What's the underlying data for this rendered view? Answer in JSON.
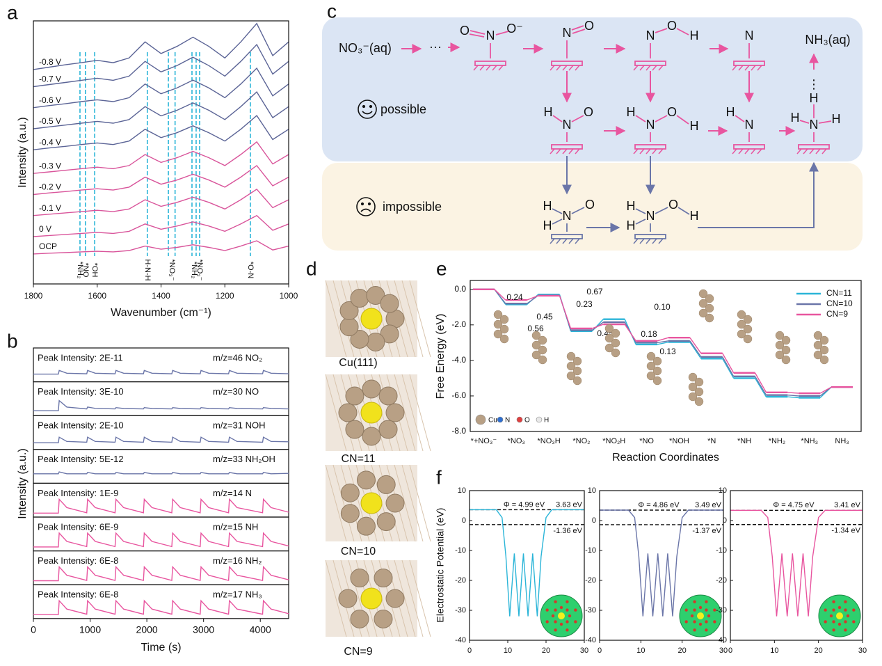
{
  "chart_data": [
    {
      "type": "line",
      "panel": "a",
      "xlabel": "Wavenumber (cm⁻¹)",
      "ylabel": "Intensity (a.u.)",
      "x": [
        1800,
        1750,
        1700,
        1650,
        1600,
        1550,
        1500,
        1450,
        1400,
        1350,
        1300,
        1250,
        1200,
        1150,
        1100,
        1050,
        1000
      ],
      "xlim": [
        1800,
        1000
      ],
      "xticks": [
        1800,
        1600,
        1400,
        1200,
        1000
      ],
      "ylim": [
        0,
        100
      ],
      "series": [
        {
          "name": "-0.8 V",
          "color": "#5b6496",
          "values": [
            81.5,
            82.4,
            83.3,
            84.1,
            85,
            84.1,
            85.9,
            92,
            87.6,
            90.3,
            93.8,
            90.3,
            85.9,
            92,
            99,
            86.8,
            92
          ]
        },
        {
          "name": "-0.7 V",
          "color": "#5b6496",
          "values": [
            75,
            75.8,
            76.6,
            77.4,
            78.2,
            77.4,
            79,
            84.6,
            80.6,
            83,
            86.2,
            83,
            79,
            84.6,
            91,
            79.8,
            84.6
          ]
        },
        {
          "name": "-0.6 V",
          "color": "#5b6496",
          "values": [
            67,
            67.8,
            68.5,
            69.3,
            70,
            69.3,
            70.8,
            76,
            72.3,
            74.5,
            77.5,
            74.5,
            70.8,
            76,
            82,
            71.5,
            76
          ]
        },
        {
          "name": "-0.5 V",
          "color": "#5b6496",
          "values": [
            59,
            59.7,
            60.4,
            61.1,
            61.8,
            61.1,
            62.5,
            67.4,
            63.9,
            66,
            68.8,
            66,
            62.5,
            67.4,
            73,
            63.2,
            67.4
          ]
        },
        {
          "name": "-0.4 V",
          "color": "#5b6496",
          "values": [
            51,
            51.7,
            52.3,
            53,
            53.6,
            53,
            54.3,
            58.8,
            55.6,
            57.5,
            60.1,
            57.5,
            54.3,
            58.8,
            64,
            54.9,
            58.8
          ]
        },
        {
          "name": "-0.3 V",
          "color": "#d9559b",
          "values": [
            42,
            42.6,
            43.2,
            43.8,
            44.4,
            43.8,
            45,
            49.2,
            46.2,
            48,
            50.4,
            48,
            45,
            49.2,
            54,
            45.6,
            49.2
          ]
        },
        {
          "name": "-0.2 V",
          "color": "#d9559b",
          "values": [
            34,
            34.6,
            35.1,
            35.7,
            36.2,
            35.7,
            36.8,
            40.6,
            37.9,
            39.5,
            41.7,
            39.5,
            36.8,
            40.6,
            45,
            37.3,
            40.6
          ]
        },
        {
          "name": "-0.1 V",
          "color": "#d9559b",
          "values": [
            26,
            26.5,
            27,
            27.5,
            28,
            27.5,
            28.5,
            32,
            29.5,
            31,
            33,
            31,
            28.5,
            32,
            36,
            29,
            32
          ]
        },
        {
          "name": "0 V",
          "color": "#d9559b",
          "values": [
            18,
            18.4,
            18.8,
            19.2,
            19.6,
            19.2,
            20,
            22.8,
            20.8,
            22,
            23.6,
            22,
            20,
            22.8,
            26,
            20.4,
            22.8
          ]
        },
        {
          "name": "OCP",
          "color": "#d9559b",
          "values": [
            11.4,
            11.7,
            11.9,
            12.2,
            12.4,
            12.2,
            12.7,
            14.4,
            13.2,
            13.9,
            14.9,
            13.9,
            12.7,
            14.4,
            16.4,
            12.9,
            14.4
          ]
        }
      ],
      "marker_color": "#2bb5d8",
      "markers": [
        {
          "values": [
            1654
          ],
          "label": "*NH₂"
        },
        {
          "values": [
            1637
          ],
          "label": "*NO"
        },
        {
          "values": [
            1608
          ],
          "label": "*OH"
        },
        {
          "values": [
            1443
          ],
          "label": "H-N-H"
        },
        {
          "values": [
            1377,
            1356
          ],
          "label": "*NO₃⁻"
        },
        {
          "values": [
            1303,
            1290
          ],
          "label": "*NH₂"
        },
        {
          "values": [
            1279
          ],
          "label": "*NO₂⁻"
        },
        {
          "values": [
            1120
          ],
          "label": "*O-N"
        }
      ]
    },
    {
      "type": "line",
      "panel": "b",
      "xlabel": "Time (s)",
      "ylabel": "Intensity (a.u.)",
      "x": [
        0,
        440,
        455,
        590,
        940,
        955,
        1090,
        1440,
        1455,
        1590,
        1940,
        1955,
        2090,
        2440,
        2455,
        2590,
        2940,
        2955,
        3090,
        3440,
        3455,
        3590,
        4040,
        4055,
        4190,
        4500
      ],
      "xlim": [
        0,
        4500
      ],
      "xticks": [
        0,
        1000,
        2000,
        3000,
        4000
      ],
      "ylim": [
        0,
        1
      ],
      "series": [
        {
          "name": "m/z=46 NO₂",
          "label": "Peak Intensity: 2E-11",
          "color": "#6a75a8",
          "values": [
            0.3,
            0.3,
            0.5,
            0.35,
            0.32,
            0.5,
            0.35,
            0.32,
            0.5,
            0.35,
            0.32,
            0.5,
            0.35,
            0.32,
            0.5,
            0.35,
            0.32,
            0.5,
            0.35,
            0.32,
            0.5,
            0.35,
            0.32,
            0.5,
            0.35,
            0.32
          ]
        },
        {
          "name": "m/z=30 NO",
          "label": "Peak Intensity: 3E-10",
          "color": "#6a75a8",
          "values": [
            0.15,
            0.15,
            0.7,
            0.35,
            0.25,
            0.35,
            0.28,
            0.25,
            0.32,
            0.27,
            0.25,
            0.32,
            0.27,
            0.25,
            0.32,
            0.27,
            0.25,
            0.32,
            0.27,
            0.25,
            0.32,
            0.27,
            0.25,
            0.32,
            0.27,
            0.25
          ]
        },
        {
          "name": "m/z=31 NOH",
          "label": "Peak Intensity: 2E-10",
          "color": "#6a75a8",
          "values": [
            0.25,
            0.25,
            0.55,
            0.32,
            0.28,
            0.55,
            0.32,
            0.28,
            0.55,
            0.32,
            0.28,
            0.55,
            0.32,
            0.28,
            0.55,
            0.32,
            0.28,
            0.55,
            0.32,
            0.28,
            0.55,
            0.32,
            0.28,
            0.55,
            0.32,
            0.3
          ]
        },
        {
          "name": "m/z=33 NH₂OH",
          "label": "Peak Intensity: 5E-12",
          "color": "#6a75a8",
          "values": [
            0.4,
            0.4,
            0.5,
            0.4,
            0.4,
            0.47,
            0.4,
            0.4,
            0.47,
            0.4,
            0.4,
            0.47,
            0.4,
            0.4,
            0.47,
            0.4,
            0.4,
            0.47,
            0.4,
            0.4,
            0.47,
            0.4,
            0.4,
            0.47,
            0.4,
            0.42
          ]
        },
        {
          "name": "m/z=14 N",
          "label": "Peak Intensity: 1E-9",
          "color": "#e8559f",
          "values": [
            0.1,
            0.1,
            0.85,
            0.4,
            0.12,
            0.85,
            0.4,
            0.12,
            0.85,
            0.4,
            0.12,
            0.85,
            0.4,
            0.12,
            0.85,
            0.4,
            0.12,
            0.85,
            0.4,
            0.12,
            0.85,
            0.4,
            0.12,
            0.85,
            0.4,
            0.15
          ]
        },
        {
          "name": "m/z=15 NH",
          "label": "Peak Intensity: 6E-9",
          "color": "#e8559f",
          "values": [
            0.1,
            0.1,
            0.85,
            0.4,
            0.12,
            0.85,
            0.4,
            0.12,
            0.85,
            0.4,
            0.12,
            0.85,
            0.4,
            0.12,
            0.85,
            0.4,
            0.12,
            0.85,
            0.4,
            0.12,
            0.85,
            0.4,
            0.12,
            0.85,
            0.4,
            0.15
          ]
        },
        {
          "name": "m/z=16 NH₂",
          "label": "Peak Intensity: 6E-8",
          "color": "#e8559f",
          "values": [
            0.1,
            0.1,
            0.85,
            0.4,
            0.12,
            0.85,
            0.4,
            0.12,
            0.85,
            0.4,
            0.12,
            0.85,
            0.4,
            0.12,
            0.85,
            0.4,
            0.12,
            0.85,
            0.4,
            0.12,
            0.85,
            0.4,
            0.12,
            0.85,
            0.4,
            0.15
          ]
        },
        {
          "name": "m/z=17 NH₃",
          "label": "Peak Intensity: 6E-8",
          "color": "#e8559f",
          "values": [
            0.1,
            0.1,
            0.85,
            0.4,
            0.12,
            0.85,
            0.4,
            0.12,
            0.85,
            0.4,
            0.12,
            0.85,
            0.4,
            0.12,
            0.85,
            0.4,
            0.12,
            0.85,
            0.4,
            0.12,
            0.85,
            0.4,
            0.12,
            0.85,
            0.4,
            0.15
          ]
        }
      ]
    },
    {
      "type": "step",
      "panel": "e",
      "xlabel": "Reaction Coordinates",
      "ylabel": "Free Energy (eV)",
      "categories": [
        "*+NO₃⁻",
        "*NO₃",
        "*NO₃H",
        "*NO₂",
        "*NO₂H",
        "*NO",
        "*NOH",
        "*N",
        "*NH",
        "*NH₂",
        "*NH₃",
        "NH₃"
      ],
      "ylim": [
        -8,
        0.5
      ],
      "yticks": [
        {
          "value": 0,
          "label": "0.0"
        },
        {
          "value": -2,
          "label": "-2.0"
        },
        {
          "value": -4,
          "label": "-4.0"
        },
        {
          "value": -6,
          "label": "-6.0"
        },
        {
          "value": -8,
          "label": "-8.0"
        }
      ],
      "legend": "top-right",
      "series": [
        {
          "name": "CN=11",
          "color": "#2bb5d8",
          "values": [
            0,
            -0.85,
            -0.29,
            -2.35,
            -1.68,
            -3.1,
            -2.97,
            -3.9,
            -5.0,
            -6.05,
            -6.1,
            -5.5
          ]
        },
        {
          "name": "CN=10",
          "color": "#6a75a8",
          "values": [
            0,
            -0.8,
            -0.35,
            -2.3,
            -1.85,
            -3.0,
            -2.9,
            -3.8,
            -4.9,
            -5.95,
            -6.0,
            -5.5
          ]
        },
        {
          "name": "CN=9",
          "color": "#e8559f",
          "values": [
            0,
            -0.6,
            -0.36,
            -2.2,
            -1.97,
            -2.9,
            -2.72,
            -3.6,
            -4.7,
            -5.8,
            -5.85,
            -5.5
          ]
        }
      ],
      "annotations": [
        {
          "label": "0.24",
          "color": "#e8559f"
        },
        {
          "label": "0.45",
          "color": "#6a75a8"
        },
        {
          "label": "0.56",
          "color": "#2bb5d8"
        },
        {
          "label": "0.23",
          "color": "#e8559f"
        },
        {
          "label": "0.67",
          "color": "#2bb5d8"
        },
        {
          "label": "0.45",
          "color": "#6a75a8"
        },
        {
          "label": "0.10",
          "color": "#6a75a8"
        },
        {
          "label": "0.18",
          "color": "#e8559f"
        },
        {
          "label": "0.13",
          "color": "#2bb5d8"
        }
      ],
      "elements": [
        "Cu",
        "N",
        "O",
        "H"
      ],
      "element_colors": [
        "#b8a085",
        "#2f6fd0",
        "#e04040",
        "#e8e8e8"
      ]
    },
    {
      "type": "line",
      "panel": "f",
      "ylabel": "Electrostatic Potential (eV)",
      "x": [
        0,
        7,
        8.5,
        9.5,
        10.5,
        11.7,
        12.9,
        14.1,
        15.3,
        16.5,
        17.7,
        18.7,
        20,
        21.5,
        30
      ],
      "xlim": [
        0,
        30
      ],
      "xticks": [
        0,
        10,
        20,
        30
      ],
      "ylim": [
        -40,
        10
      ],
      "yticks": [
        10,
        0,
        -10,
        -20,
        -30,
        -40
      ],
      "charts": [
        {
          "color": "#2bb5d8",
          "values": [
            3.63,
            3.63,
            1,
            -12,
            -32,
            -11,
            -32,
            -11,
            -32,
            -11,
            -32,
            -12,
            1,
            3.63,
            3.63
          ],
          "hlines": [
            3.63,
            -1.36
          ],
          "annotations": [
            "Φ = 4.99 eV",
            "3.63 eV",
            "-1.36 eV"
          ]
        },
        {
          "color": "#6a75a8",
          "values": [
            3.49,
            3.49,
            1,
            -12,
            -32,
            -11,
            -32,
            -11,
            -32,
            -11,
            -32,
            -12,
            1,
            3.49,
            3.49
          ],
          "hlines": [
            3.49,
            -1.37
          ],
          "annotations": [
            "Φ = 4.86 eV",
            "3.49 eV",
            "-1.37 eV"
          ]
        },
        {
          "color": "#e8559f",
          "values": [
            3.41,
            3.41,
            1,
            -12,
            -32,
            -11,
            -32,
            -11,
            -32,
            -11,
            -32,
            -12,
            1,
            3.41,
            3.41
          ],
          "hlines": [
            3.41,
            -1.34
          ],
          "annotations": [
            "Φ = 4.75 eV",
            "3.41 eV",
            "-1.34 eV"
          ]
        }
      ]
    }
  ],
  "panel_c": {
    "label": "c",
    "source": "NO₃⁻(aq)",
    "dots": "···",
    "product": "NH₃(aq)",
    "vdots": "⋮",
    "possible": "possible",
    "impossible": "impossible",
    "structures": [
      {
        "atoms": [
          "O",
          "N",
          "O⁻"
        ]
      },
      {
        "atoms": [
          "N",
          "O"
        ]
      },
      {
        "atoms": [
          "N",
          "O",
          "H"
        ]
      },
      {
        "atoms": [
          "N"
        ]
      },
      {
        "atoms": [
          "H",
          "N",
          "O"
        ]
      },
      {
        "atoms": [
          "H",
          "N",
          "O",
          "H"
        ]
      },
      {
        "atoms": [
          "H",
          "N"
        ]
      },
      {
        "atoms": [
          "H",
          "H",
          "N",
          "H"
        ]
      },
      {
        "atoms": [
          "H",
          "H",
          "N",
          "O"
        ]
      },
      {
        "atoms": [
          "H",
          "H",
          "N",
          "O",
          "H"
        ]
      }
    ]
  },
  "panel_d": {
    "label": "d",
    "captions": [
      "Cu(111)",
      "CN=11",
      "CN=10",
      "CN=9"
    ]
  }
}
